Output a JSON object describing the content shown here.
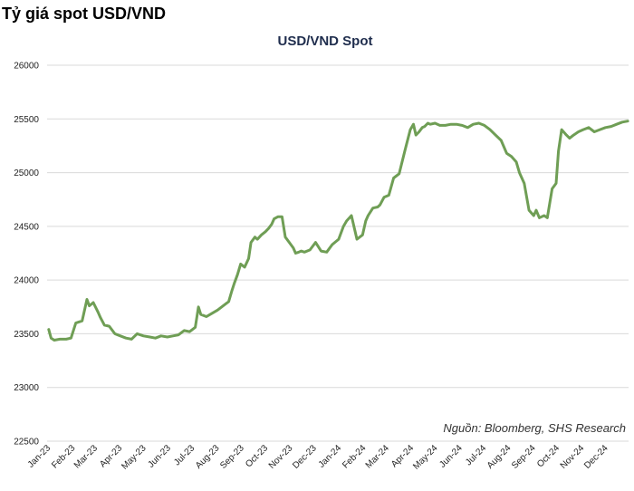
{
  "page": {
    "heading": "Tỷ giá spot USD/VND"
  },
  "colors": {
    "line": "#6f9e55",
    "grid": "#d9d9d9",
    "title": "#1f2d4d",
    "text": "#222222"
  },
  "chart_data": {
    "type": "line",
    "title": "USD/VND Spot",
    "xlabel": "",
    "ylabel": "",
    "source": "Nguồn: Bloomberg, SHS Research",
    "grid": true,
    "legend": "none",
    "ylim": [
      22500,
      26000
    ],
    "yticks": [
      22500,
      23000,
      23500,
      24000,
      24500,
      25000,
      25500,
      26000
    ],
    "xlim": [
      "2023-01-01",
      "2024-12-31"
    ],
    "xtick_labels": [
      "Jan-23",
      "Feb-23",
      "Mar-23",
      "Apr-23",
      "May-23",
      "Jun-23",
      "Jul-23",
      "Aug-23",
      "Sep-23",
      "Oct-23",
      "Nov-23",
      "Dec-23",
      "Jan-24",
      "Feb-24",
      "Mar-24",
      "Apr-24",
      "May-24",
      "Jun-24",
      "Jul-24",
      "Aug-24",
      "Sep-24",
      "Oct-24",
      "Nov-24",
      "Dec-24"
    ],
    "series": [
      {
        "x": [
          "2023-01-03",
          "2023-01-06",
          "2023-01-10",
          "2023-01-17",
          "2023-01-25",
          "2023-01-31",
          "2023-02-06",
          "2023-02-14",
          "2023-02-20",
          "2023-02-23",
          "2023-02-28",
          "2023-03-06",
          "2023-03-09",
          "2023-03-14",
          "2023-03-20",
          "2023-03-27",
          "2023-04-03",
          "2023-04-10",
          "2023-04-17",
          "2023-04-24",
          "2023-05-02",
          "2023-05-10",
          "2023-05-17",
          "2023-05-24",
          "2023-06-01",
          "2023-06-08",
          "2023-06-15",
          "2023-06-22",
          "2023-06-29",
          "2023-07-06",
          "2023-07-10",
          "2023-07-13",
          "2023-07-20",
          "2023-07-27",
          "2023-08-03",
          "2023-08-10",
          "2023-08-17",
          "2023-08-21",
          "2023-08-24",
          "2023-08-28",
          "2023-09-01",
          "2023-09-06",
          "2023-09-11",
          "2023-09-14",
          "2023-09-19",
          "2023-09-22",
          "2023-09-27",
          "2023-10-02",
          "2023-10-06",
          "2023-10-10",
          "2023-10-13",
          "2023-10-18",
          "2023-10-23",
          "2023-10-27",
          "2023-11-01",
          "2023-11-06",
          "2023-11-09",
          "2023-11-13",
          "2023-11-16",
          "2023-11-20",
          "2023-11-27",
          "2023-12-04",
          "2023-12-11",
          "2023-12-18",
          "2023-12-25",
          "2024-01-02",
          "2024-01-08",
          "2024-01-12",
          "2024-01-18",
          "2024-01-25",
          "2024-02-01",
          "2024-02-05",
          "2024-02-08",
          "2024-02-14",
          "2024-02-20",
          "2024-02-23",
          "2024-02-28",
          "2024-03-05",
          "2024-03-11",
          "2024-03-18",
          "2024-03-25",
          "2024-04-01",
          "2024-04-05",
          "2024-04-08",
          "2024-04-12",
          "2024-04-16",
          "2024-04-19",
          "2024-04-23",
          "2024-04-26",
          "2024-05-02",
          "2024-05-08",
          "2024-05-15",
          "2024-05-22",
          "2024-05-29",
          "2024-06-05",
          "2024-06-12",
          "2024-06-19",
          "2024-06-26",
          "2024-07-03",
          "2024-07-10",
          "2024-07-17",
          "2024-07-24",
          "2024-07-31",
          "2024-08-06",
          "2024-08-12",
          "2024-08-16",
          "2024-08-22",
          "2024-08-28",
          "2024-09-03",
          "2024-09-06",
          "2024-09-10",
          "2024-09-16",
          "2024-09-20",
          "2024-09-26",
          "2024-10-01",
          "2024-10-04",
          "2024-10-08",
          "2024-10-14",
          "2024-10-18",
          "2024-10-23",
          "2024-10-29",
          "2024-11-04",
          "2024-11-11",
          "2024-11-18",
          "2024-11-25",
          "2024-12-02",
          "2024-12-09",
          "2024-12-16",
          "2024-12-23",
          "2024-12-30"
        ],
        "values": [
          23540,
          23460,
          23440,
          23450,
          23450,
          23460,
          23600,
          23620,
          23820,
          23760,
          23790,
          23700,
          23650,
          23580,
          23570,
          23500,
          23480,
          23460,
          23450,
          23500,
          23480,
          23470,
          23460,
          23480,
          23470,
          23480,
          23490,
          23530,
          23520,
          23560,
          23750,
          23680,
          23660,
          23690,
          23720,
          23760,
          23800,
          23900,
          23970,
          24050,
          24150,
          24120,
          24200,
          24350,
          24400,
          24380,
          24420,
          24450,
          24480,
          24520,
          24570,
          24590,
          24590,
          24400,
          24350,
          24300,
          24250,
          24260,
          24270,
          24260,
          24280,
          24350,
          24270,
          24260,
          24330,
          24380,
          24500,
          24550,
          24600,
          24380,
          24420,
          24550,
          24600,
          24670,
          24680,
          24700,
          24770,
          24790,
          24950,
          24990,
          25200,
          25400,
          25450,
          25350,
          25380,
          25420,
          25430,
          25460,
          25450,
          25460,
          25440,
          25440,
          25450,
          25450,
          25440,
          25420,
          25450,
          25460,
          25440,
          25400,
          25350,
          25300,
          25180,
          25150,
          25100,
          25000,
          24900,
          24650,
          24600,
          24650,
          24580,
          24600,
          24580,
          24850,
          24900,
          25200,
          25400,
          25350,
          25320,
          25350,
          25380,
          25400,
          25420,
          25380,
          25400,
          25420,
          25430,
          25450,
          25470,
          25480
        ]
      }
    ]
  }
}
